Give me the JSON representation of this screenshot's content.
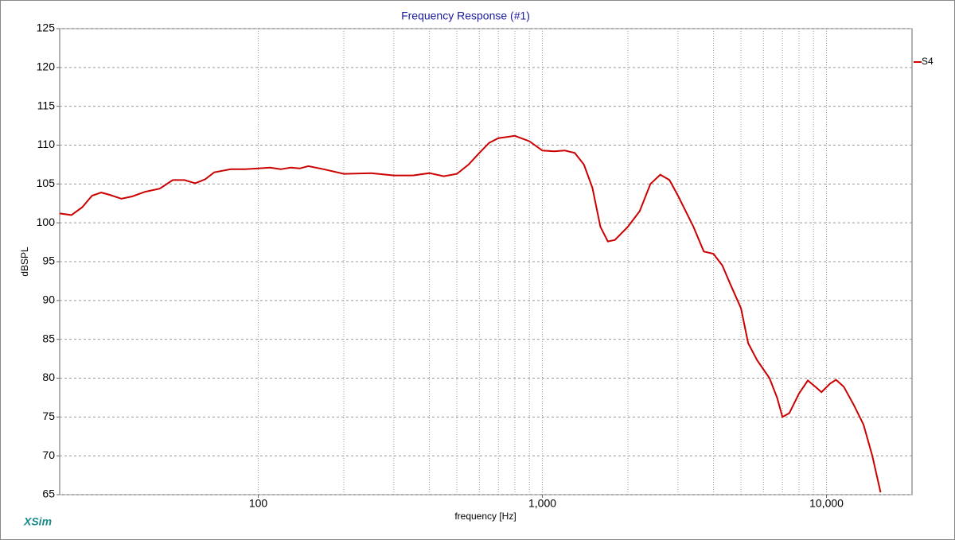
{
  "chart_data": {
    "type": "line",
    "title": "Frequency Response (#1)",
    "x_label": "frequency [Hz]",
    "y_label": "dBSPL",
    "watermark": "XSim",
    "log_x": true,
    "xlim": [
      20,
      20000
    ],
    "ylim": [
      65,
      125
    ],
    "xticks": [
      100,
      {
        "value": 1000,
        "label": "1,000"
      },
      {
        "value": 10000,
        "label": "10,000"
      }
    ],
    "xgrid": [
      100,
      200,
      300,
      400,
      500,
      600,
      700,
      800,
      900,
      1000,
      2000,
      3000,
      4000,
      5000,
      6000,
      7000,
      8000,
      9000,
      10000
    ],
    "yticks": [
      65,
      70,
      75,
      80,
      85,
      90,
      95,
      100,
      105,
      110,
      115,
      120,
      125
    ],
    "grid": true,
    "legend": "right",
    "x": [
      20,
      22,
      24,
      26,
      28,
      30,
      33,
      36,
      40,
      45,
      50,
      55,
      60,
      65,
      70,
      80,
      90,
      100,
      110,
      120,
      130,
      140,
      150,
      170,
      200,
      250,
      300,
      350,
      400,
      450,
      500,
      550,
      600,
      650,
      700,
      800,
      900,
      1000,
      1100,
      1200,
      1300,
      1400,
      1500,
      1600,
      1700,
      1800,
      2000,
      2200,
      2400,
      2600,
      2800,
      3000,
      3400,
      3700,
      4000,
      4300,
      4600,
      5000,
      5300,
      5700,
      6300,
      6700,
      7000,
      7400,
      8000,
      8600,
      9200,
      9600,
      10300,
      10800,
      11500,
      12500,
      13500,
      14500,
      15500
    ],
    "series": [
      {
        "name": "S4",
        "color": "#cc0000",
        "values": [
          101.2,
          101.0,
          102.0,
          103.5,
          103.9,
          103.6,
          103.1,
          103.4,
          104.0,
          104.4,
          105.5,
          105.5,
          105.1,
          105.6,
          106.5,
          106.9,
          106.9,
          107.0,
          107.1,
          106.9,
          107.1,
          107.0,
          107.3,
          106.9,
          106.3,
          106.4,
          106.1,
          106.1,
          106.4,
          106.0,
          106.3,
          107.5,
          109.0,
          110.3,
          110.9,
          111.2,
          110.5,
          109.3,
          109.2,
          109.3,
          109.0,
          107.5,
          104.5,
          99.5,
          97.6,
          97.8,
          99.5,
          101.5,
          105.0,
          106.2,
          105.5,
          103.5,
          99.5,
          96.3,
          96.0,
          94.5,
          92.0,
          89.0,
          84.5,
          82.3,
          80.0,
          77.5,
          75.0,
          75.5,
          78.0,
          79.7,
          78.8,
          78.2,
          79.3,
          79.8,
          78.9,
          76.5,
          74.0,
          70.0,
          65.3
        ]
      }
    ]
  }
}
